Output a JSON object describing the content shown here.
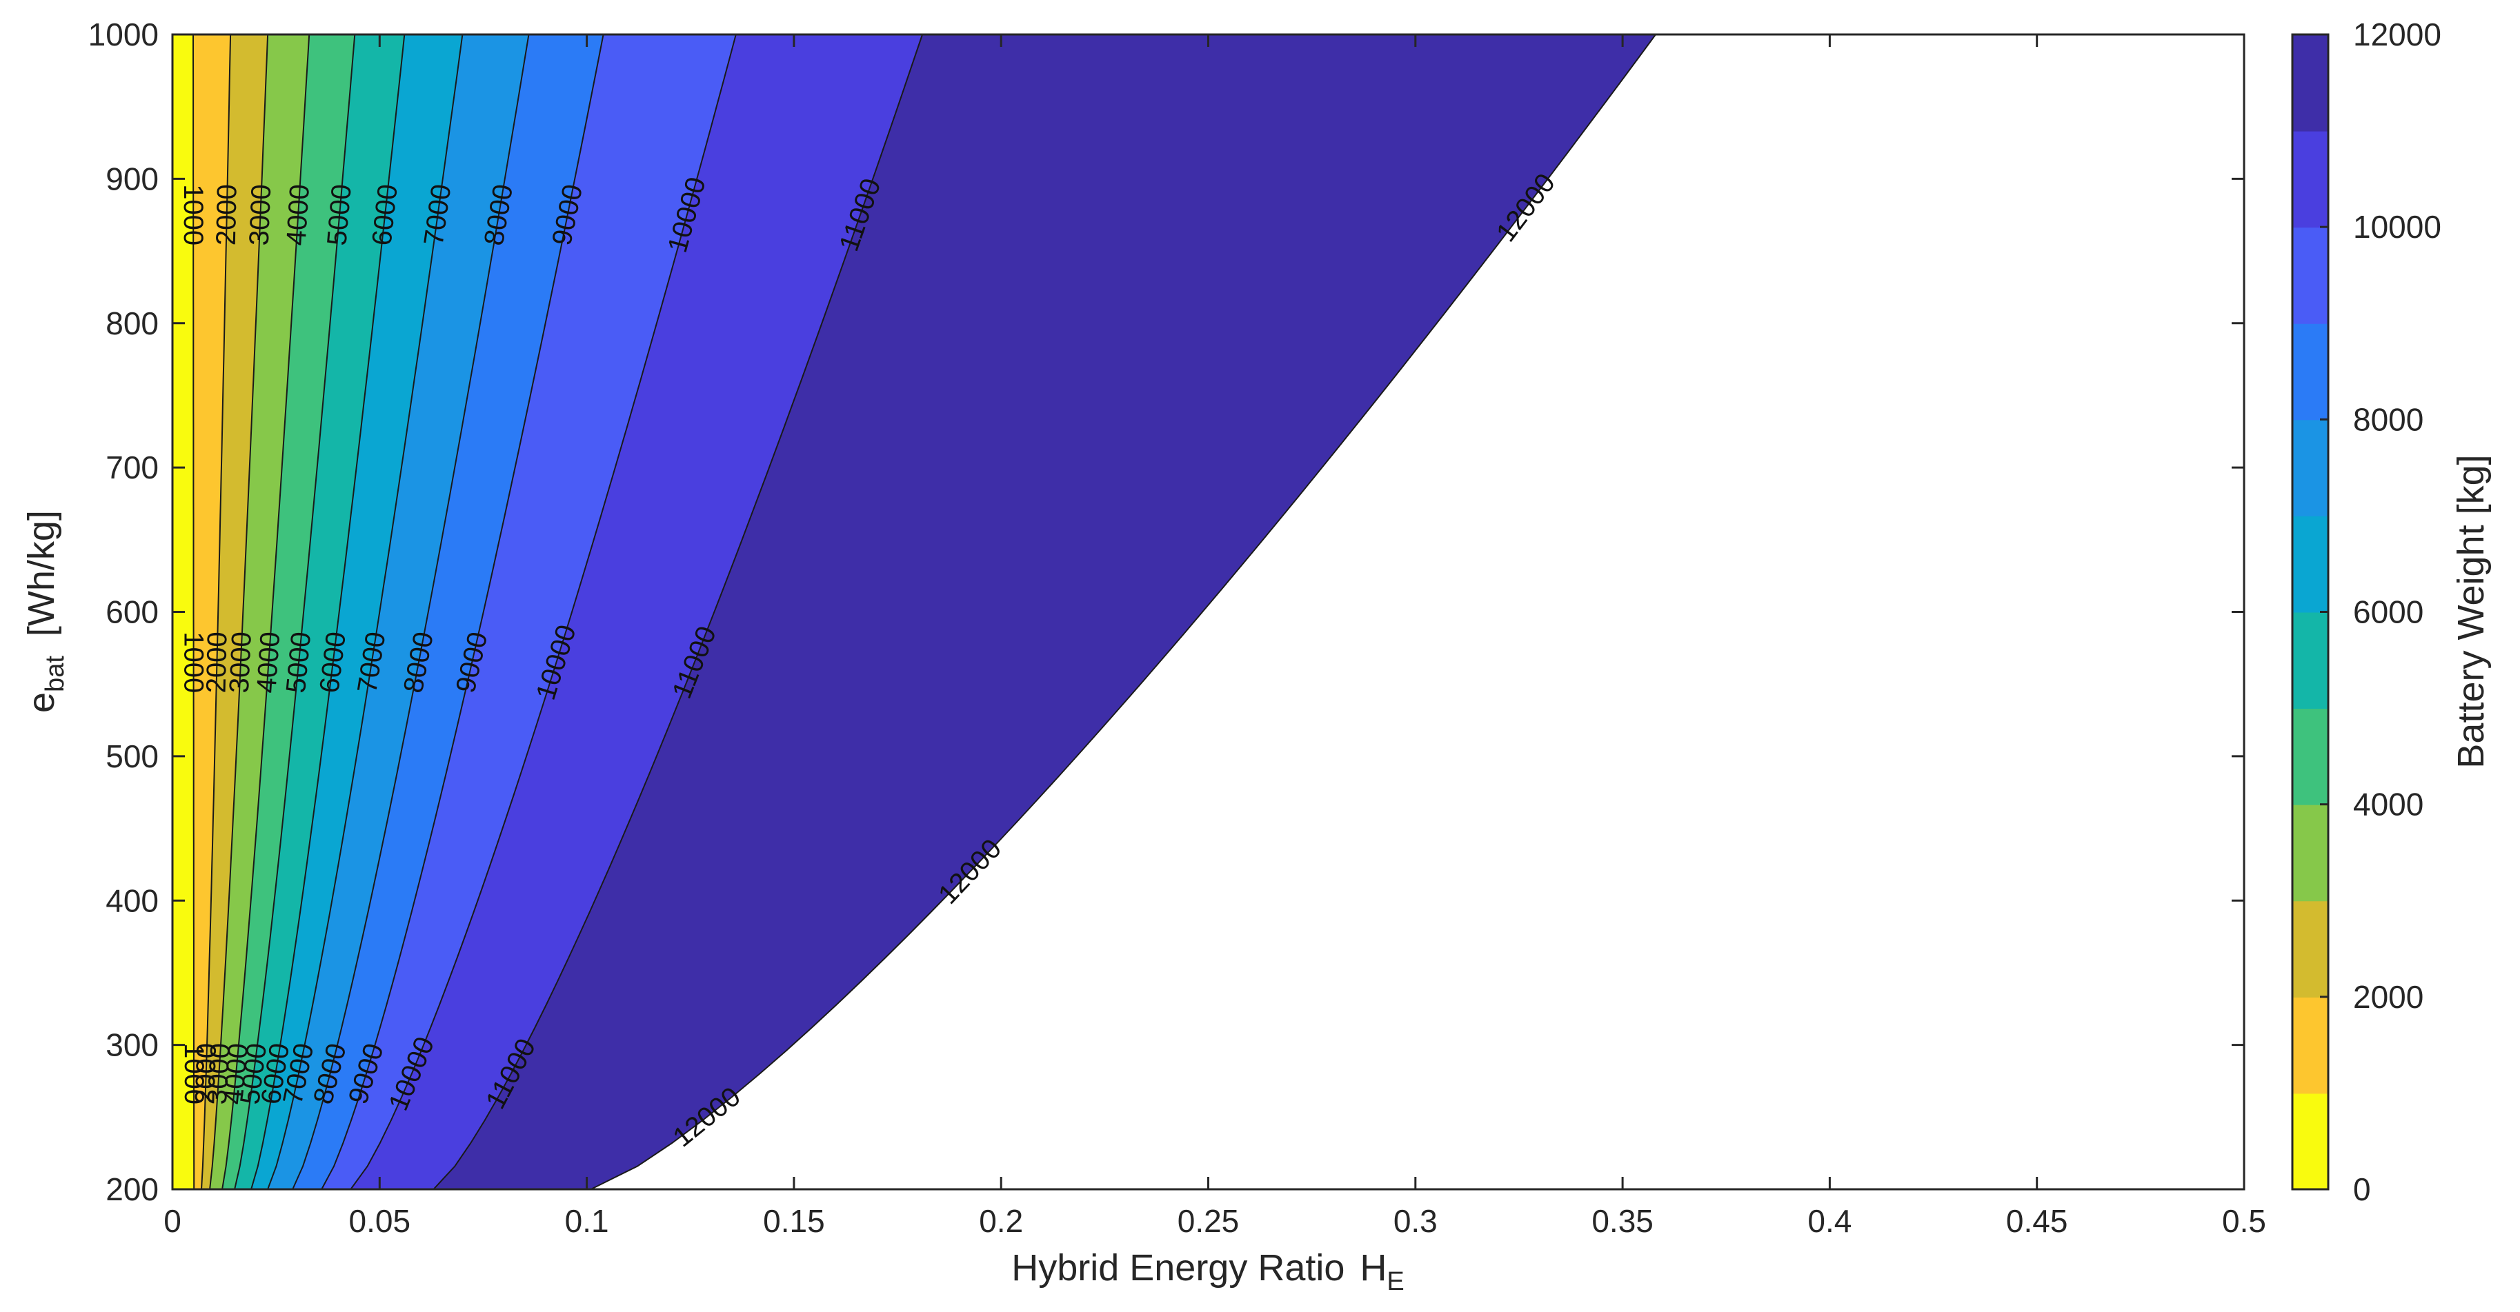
{
  "chart_data": {
    "type": "contourf",
    "title": "",
    "xlabel": "Hybrid  Energy  Ratio",
    "xlabel_symbol": "H",
    "xlabel_subscript": "E",
    "ylabel_symbol": "e",
    "ylabel_subscript": "bat",
    "ylabel_unit": "[Wh/kg]",
    "xlim": [
      0,
      0.5
    ],
    "ylim": [
      200,
      1000
    ],
    "x_ticks": [
      "0",
      "0.05",
      "0.1",
      "0.15",
      "0.2",
      "0.25",
      "0.3",
      "0.35",
      "0.4",
      "0.45",
      "0.5"
    ],
    "y_ticks": [
      "200",
      "300",
      "400",
      "500",
      "600",
      "700",
      "800",
      "900",
      "1000"
    ],
    "levels": [
      0,
      1000,
      2000,
      3000,
      4000,
      5000,
      6000,
      7000,
      8000,
      9000,
      10000,
      11000,
      12000
    ],
    "contour_lines": [
      {
        "level": 1000,
        "label": "1000",
        "x_at_y200": 0.0052,
        "x_at_y1000": 0.005
      },
      {
        "level": 2000,
        "label": "2000",
        "x_at_y200": 0.007,
        "x_at_y1000": 0.014
      },
      {
        "level": 3000,
        "label": "3000",
        "x_at_y200": 0.009,
        "x_at_y1000": 0.023
      },
      {
        "level": 4000,
        "label": "4000",
        "x_at_y200": 0.012,
        "x_at_y1000": 0.033
      },
      {
        "level": 5000,
        "label": "5000",
        "x_at_y200": 0.015,
        "x_at_y1000": 0.044
      },
      {
        "level": 6000,
        "label": "6000",
        "x_at_y200": 0.019,
        "x_at_y1000": 0.056
      },
      {
        "level": 7000,
        "label": "7000",
        "x_at_y200": 0.023,
        "x_at_y1000": 0.07
      },
      {
        "level": 8000,
        "label": "8000",
        "x_at_y200": 0.029,
        "x_at_y1000": 0.086
      },
      {
        "level": 9000,
        "label": "9000",
        "x_at_y200": 0.036,
        "x_at_y1000": 0.104
      },
      {
        "level": 10000,
        "label": "10000",
        "x_at_y200": 0.043,
        "x_at_y1000": 0.136
      },
      {
        "level": 11000,
        "label": "11000",
        "x_at_y200": 0.063,
        "x_at_y1000": 0.181
      },
      {
        "level": 12000,
        "label": "12000",
        "x_at_y200": 0.101,
        "x_at_y1000": 0.358
      }
    ],
    "colorbar": {
      "label": "Battery Weight [kg]",
      "range": [
        0,
        12000
      ],
      "ticks": [
        "0",
        "2000",
        "4000",
        "6000",
        "8000",
        "10000",
        "12000"
      ],
      "band_colors": [
        "#f9fb0e",
        "#fdc62f",
        "#d3bb2f",
        "#86c84a",
        "#3ec27d",
        "#14b6a8",
        "#0aa6d2",
        "#1b94e4",
        "#2b7bf6",
        "#4a5cf6",
        "#4a3fdf",
        "#3e2ea8"
      ]
    }
  }
}
